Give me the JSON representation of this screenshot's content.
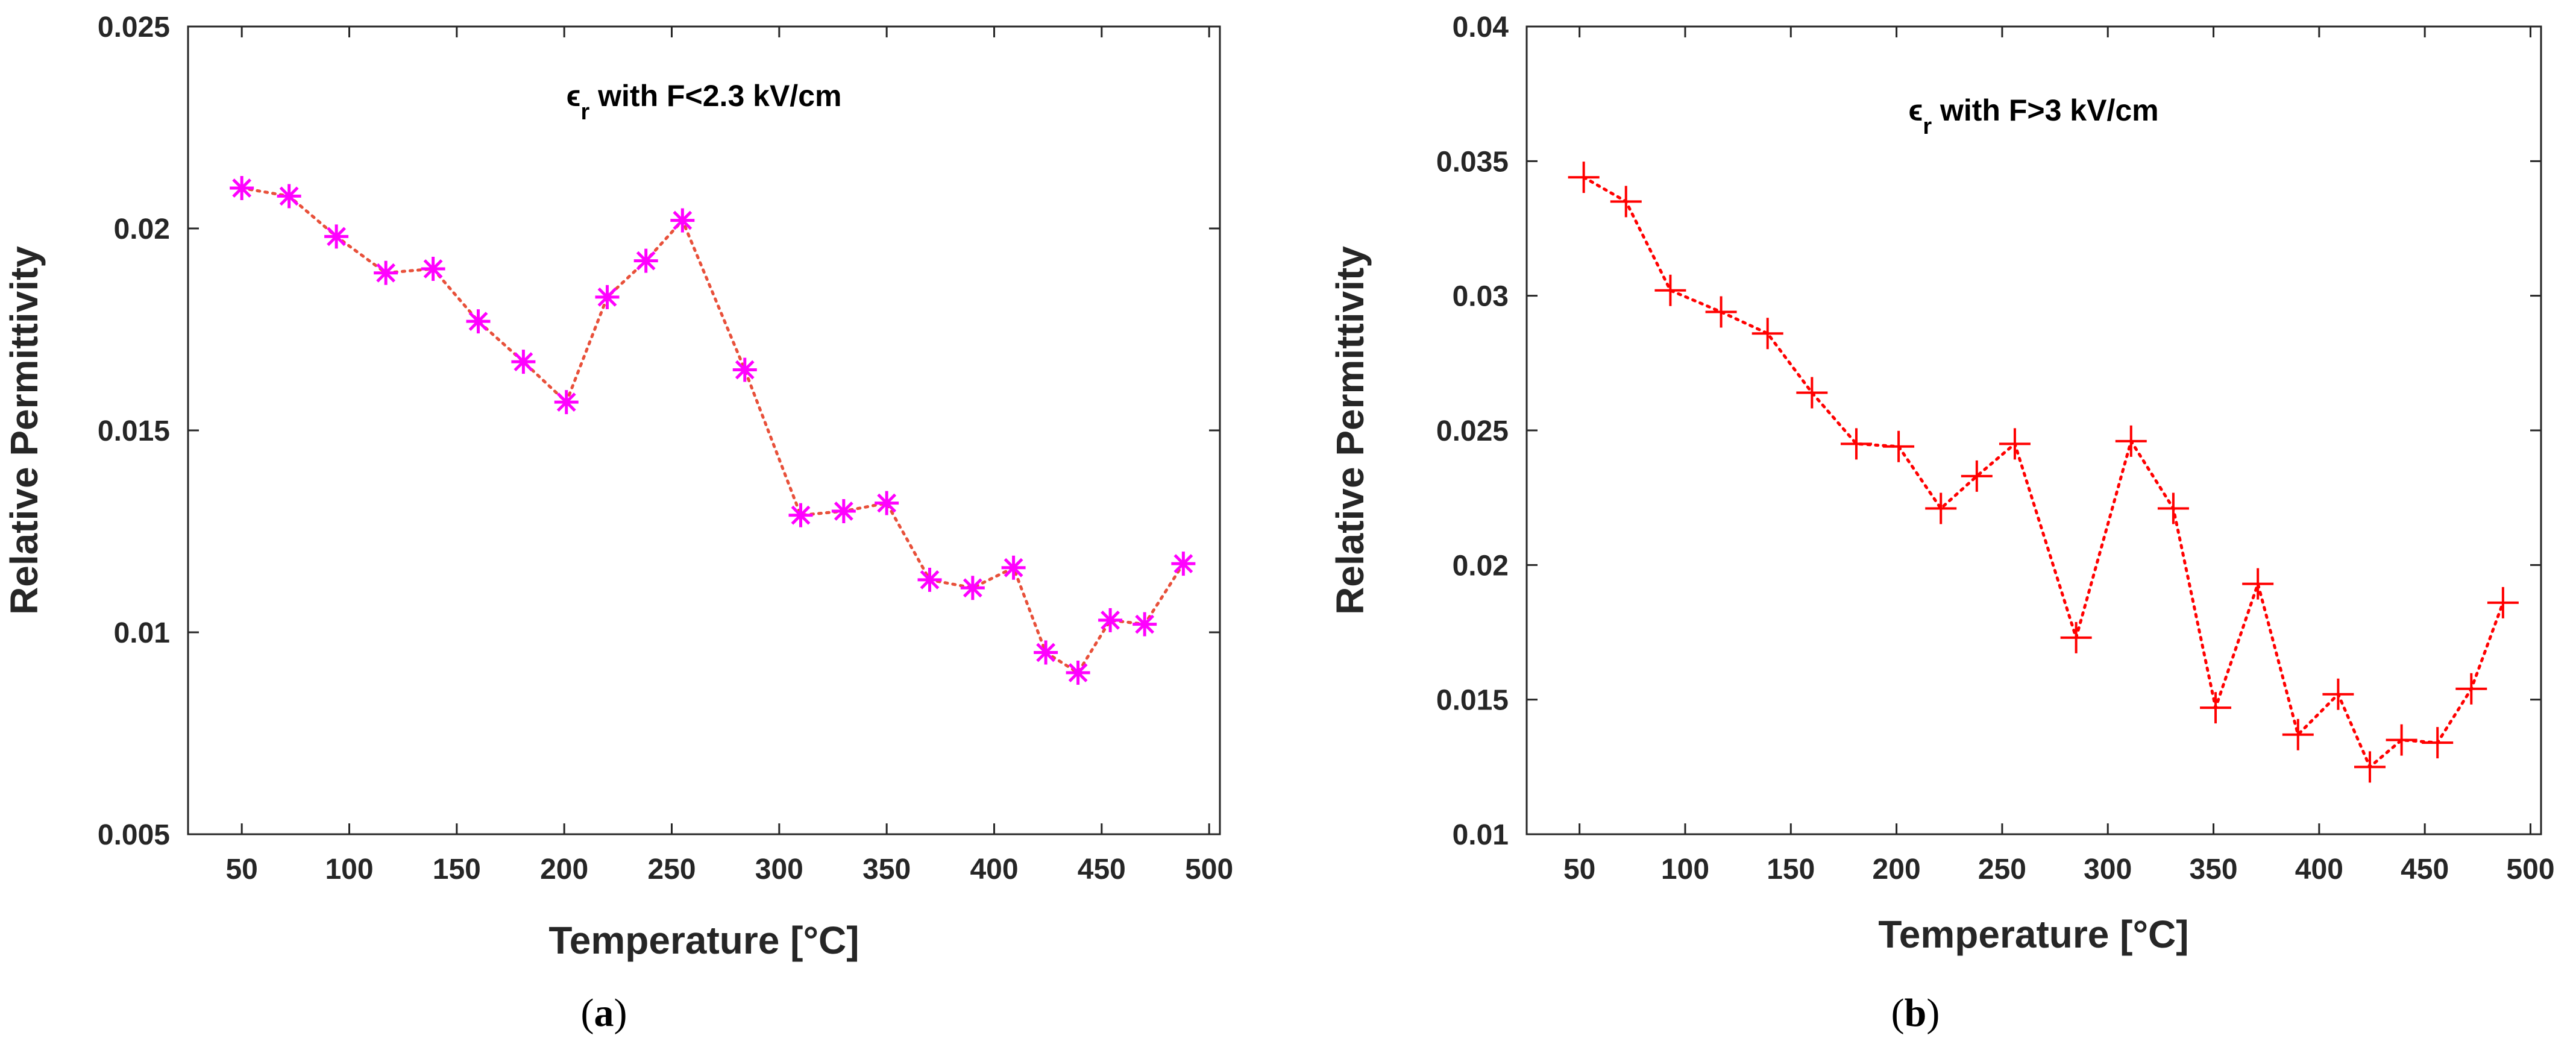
{
  "chart_data": [
    {
      "type": "line",
      "panel": "a",
      "caption": {
        "open": "(",
        "letter": "a",
        "close": ")"
      },
      "title": {
        "symbol": "ϵ",
        "subscript": "r",
        "text": " with F<2.3 kV/cm"
      },
      "xlabel": "Temperature [°C]",
      "ylabel": "Relative Permittivity",
      "xlim": [
        25,
        505
      ],
      "ylim": [
        0.005,
        0.025
      ],
      "xticks": [
        50,
        100,
        150,
        200,
        250,
        300,
        350,
        400,
        450,
        500
      ],
      "xtick_labels": [
        "50",
        "100",
        "150",
        "200",
        "250",
        "300",
        "350",
        "400",
        "450",
        "500"
      ],
      "yticks": [
        0.005,
        0.01,
        0.015,
        0.02,
        0.025
      ],
      "ytick_labels": [
        "0.005",
        "0.01",
        "0.015",
        "0.02",
        "0.025"
      ],
      "marker": "asterisk",
      "marker_color": "#ff00ff",
      "line_color": "#e8503a",
      "line_style": "dotted",
      "x": [
        50,
        72,
        94,
        117,
        139,
        160,
        181,
        201,
        220,
        238,
        255,
        284,
        310,
        330,
        350,
        370,
        390,
        409,
        424,
        439,
        454,
        470,
        488
      ],
      "y": [
        0.021,
        0.0208,
        0.0198,
        0.0189,
        0.019,
        0.0177,
        0.0167,
        0.0157,
        0.0183,
        0.0192,
        0.0202,
        0.0165,
        0.0129,
        0.013,
        0.0132,
        0.0113,
        0.0111,
        0.0116,
        0.0095,
        0.009,
        0.0103,
        0.0102,
        0.0117
      ]
    },
    {
      "type": "line",
      "panel": "b",
      "caption": {
        "open": "(",
        "letter": "b",
        "close": ")"
      },
      "title": {
        "symbol": "ϵ",
        "subscript": "r",
        "text": " with F>3 kV/cm"
      },
      "xlabel": "Temperature [°C]",
      "ylabel": "Relative Permittivity",
      "xlim": [
        25,
        505
      ],
      "ylim": [
        0.01,
        0.04
      ],
      "xticks": [
        50,
        100,
        150,
        200,
        250,
        300,
        350,
        400,
        450,
        500
      ],
      "xtick_labels": [
        "50",
        "100",
        "150",
        "200",
        "250",
        "300",
        "350",
        "400",
        "450",
        "500"
      ],
      "yticks": [
        0.01,
        0.015,
        0.02,
        0.025,
        0.03,
        0.035,
        0.04
      ],
      "ytick_labels": [
        "0.01",
        "0.015",
        "0.02",
        "0.025",
        "0.03",
        "0.035",
        "0.04"
      ],
      "marker": "plus",
      "marker_color": "#ff0000",
      "line_color": "#ff0000",
      "line_style": "dotted",
      "x": [
        52,
        72,
        93,
        117,
        139,
        160,
        181,
        201,
        221,
        238,
        256,
        285,
        311,
        331,
        351,
        371,
        390,
        409,
        424,
        439,
        456,
        472,
        487
      ],
      "y": [
        0.0344,
        0.0335,
        0.0302,
        0.0294,
        0.0286,
        0.0264,
        0.0245,
        0.0244,
        0.0221,
        0.0233,
        0.0245,
        0.0173,
        0.0246,
        0.0221,
        0.0147,
        0.0193,
        0.0137,
        0.0152,
        0.0125,
        0.0135,
        0.0134,
        0.0154,
        0.0186
      ]
    }
  ]
}
